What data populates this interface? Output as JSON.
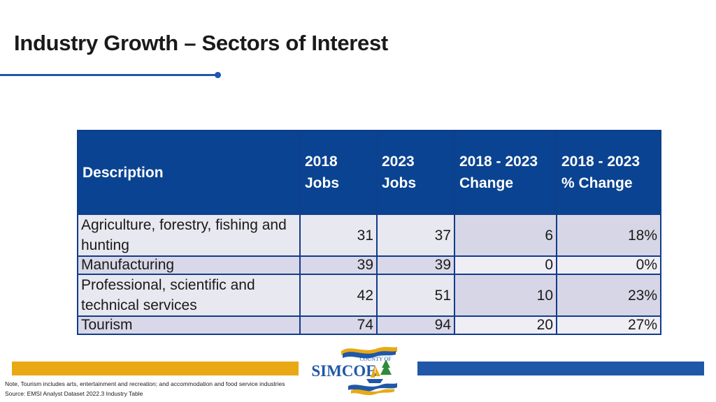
{
  "slide": {
    "title": "Industry Growth – Sectors of Interest"
  },
  "table": {
    "headers": {
      "description": "Description",
      "jobs_2018_line1": "2018",
      "jobs_2018_line2": "Jobs",
      "jobs_2023_line1": "2023",
      "jobs_2023_line2": "Jobs",
      "change_line1": "2018 - 2023",
      "change_line2": "Change",
      "pct_line1": "2018 - 2023",
      "pct_line2": "% Change"
    },
    "rows": [
      {
        "description": "Agriculture, forestry, fishing and hunting",
        "jobs_2018": "31",
        "jobs_2023": "37",
        "change": "6",
        "pct_change": "18%"
      },
      {
        "description": "Manufacturing",
        "jobs_2018": "39",
        "jobs_2023": "39",
        "change": "0",
        "pct_change": "0%"
      },
      {
        "description": "Professional, scientific and technical services",
        "jobs_2018": "42",
        "jobs_2023": "51",
        "change": "10",
        "pct_change": "23%"
      },
      {
        "description": "Tourism",
        "jobs_2018": "74",
        "jobs_2023": "94",
        "change": "20",
        "pct_change": "27%"
      }
    ]
  },
  "logo": {
    "line1": "COUNTY OF",
    "line2": "SIMCOE",
    "colors": {
      "blue": "#1f58a8",
      "gold": "#e8a914",
      "green": "#2e8b3a"
    }
  },
  "footer": {
    "note": "Note, Tourism includes arts, entertainment and recreation; and accommodation and food service industries",
    "source": "Source: EMSI Analyst Dataset 2022.3 Industry Table"
  },
  "colors": {
    "accent_blue": "#1f58a8",
    "header_blue": "#0a4391",
    "gold": "#e8a914"
  }
}
